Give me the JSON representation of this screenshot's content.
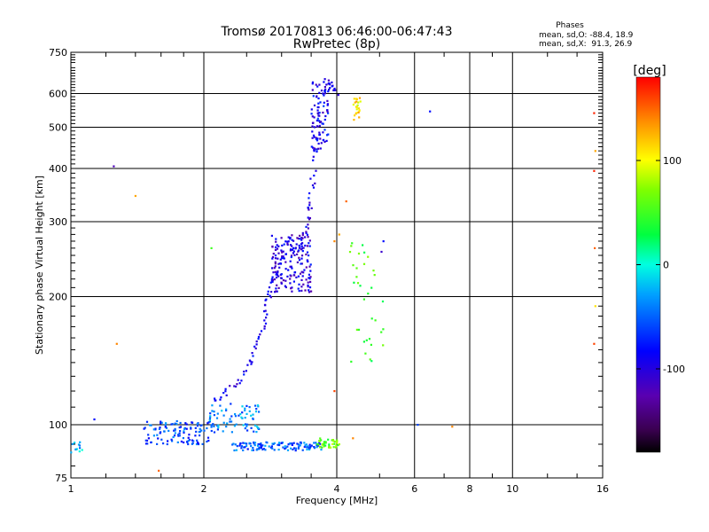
{
  "chart_data": {
    "type": "scatter",
    "title": "Tromsø 20170813 06:46:00-06:47:43",
    "subtitle": "RwPretec (8p)",
    "xlabel": "Frequency [MHz]",
    "ylabel": "Stationary phase Virtual Height [km]",
    "x_scale": "log",
    "y_scale": "log",
    "xlim": [
      1,
      16
    ],
    "ylim": [
      75,
      750
    ],
    "x_ticks": [
      1,
      2,
      4,
      6,
      8,
      10,
      16
    ],
    "y_ticks": [
      75,
      100,
      200,
      300,
      400,
      500,
      600,
      750
    ],
    "grid": true,
    "phase_legend": {
      "heading": "Phases",
      "line1": "mean, sd,O: -88.4, 18.9",
      "line2": "mean, sd,X:  91.3, 26.9"
    },
    "colorbar": {
      "label": "[deg]",
      "range": [
        -180,
        180
      ],
      "ticks": [
        100,
        0,
        -100
      ]
    },
    "clusters": [
      {
        "x1": 1.0,
        "x2": 1.06,
        "y1": 86,
        "y2": 91,
        "phase": -25,
        "n": 12,
        "seed": 1
      },
      {
        "x1": 1.45,
        "x2": 2.05,
        "y1": 90,
        "y2": 102,
        "phase": -60,
        "n": 110,
        "seed": 2
      },
      {
        "x1": 2.05,
        "x2": 2.7,
        "y1": 96,
        "y2": 112,
        "phase": -40,
        "n": 80,
        "seed": 3
      },
      {
        "x1": 2.3,
        "x2": 3.7,
        "y1": 87,
        "y2": 91,
        "phase": -50,
        "n": 120,
        "seed": 4
      },
      {
        "x1": 3.6,
        "x2": 4.05,
        "y1": 88,
        "y2": 93,
        "phase": 60,
        "n": 40,
        "seed": 5
      },
      {
        "x1": 2.85,
        "x2": 3.5,
        "y1": 205,
        "y2": 280,
        "phase": -100,
        "n": 170,
        "seed": 6
      },
      {
        "x1": 3.5,
        "x2": 3.85,
        "y1": 440,
        "y2": 640,
        "phase": -90,
        "n": 80,
        "seed": 7
      },
      {
        "x1": 4.35,
        "x2": 4.55,
        "y1": 520,
        "y2": 590,
        "phase": 110,
        "n": 22,
        "seed": 8
      },
      {
        "x1": 4.25,
        "x2": 5.1,
        "y1": 140,
        "y2": 270,
        "phase": 50,
        "n": 35,
        "seed": 9
      }
    ],
    "trace": {
      "x": [
        2.1,
        2.25,
        2.4,
        2.55,
        2.65,
        2.72,
        2.78,
        2.82,
        2.9,
        3.1,
        3.3,
        3.4,
        3.45,
        3.5,
        3.55,
        3.6,
        3.7,
        3.8,
        3.9,
        4.0
      ],
      "y": [
        112,
        120,
        128,
        140,
        155,
        170,
        190,
        205,
        230,
        250,
        265,
        285,
        310,
        340,
        400,
        480,
        600,
        640,
        620,
        600
      ],
      "phase": -95
    },
    "points": [
      {
        "x": 1.25,
        "y": 405,
        "phase": -120
      },
      {
        "x": 1.4,
        "y": 345,
        "phase": 130
      },
      {
        "x": 1.27,
        "y": 155,
        "phase": 140
      },
      {
        "x": 1.13,
        "y": 103,
        "phase": -80
      },
      {
        "x": 1.58,
        "y": 78,
        "phase": 150
      },
      {
        "x": 2.08,
        "y": 260,
        "phase": 50
      },
      {
        "x": 3.95,
        "y": 270,
        "phase": 140
      },
      {
        "x": 4.05,
        "y": 280,
        "phase": 130
      },
      {
        "x": 4.2,
        "y": 335,
        "phase": 150
      },
      {
        "x": 5.1,
        "y": 270,
        "phase": -80
      },
      {
        "x": 5.05,
        "y": 255,
        "phase": -110
      },
      {
        "x": 6.1,
        "y": 100,
        "phase": -60
      },
      {
        "x": 6.5,
        "y": 545,
        "phase": -80
      },
      {
        "x": 7.3,
        "y": 99,
        "phase": 140
      },
      {
        "x": 15.3,
        "y": 540,
        "phase": 170
      },
      {
        "x": 15.4,
        "y": 440,
        "phase": 130
      },
      {
        "x": 15.3,
        "y": 395,
        "phase": 170
      },
      {
        "x": 15.35,
        "y": 260,
        "phase": 150
      },
      {
        "x": 15.4,
        "y": 190,
        "phase": 110
      },
      {
        "x": 15.3,
        "y": 155,
        "phase": 160
      },
      {
        "x": 4.05,
        "y": 90,
        "phase": 80
      },
      {
        "x": 4.35,
        "y": 93,
        "phase": 140
      },
      {
        "x": 3.95,
        "y": 120,
        "phase": 160
      }
    ]
  }
}
